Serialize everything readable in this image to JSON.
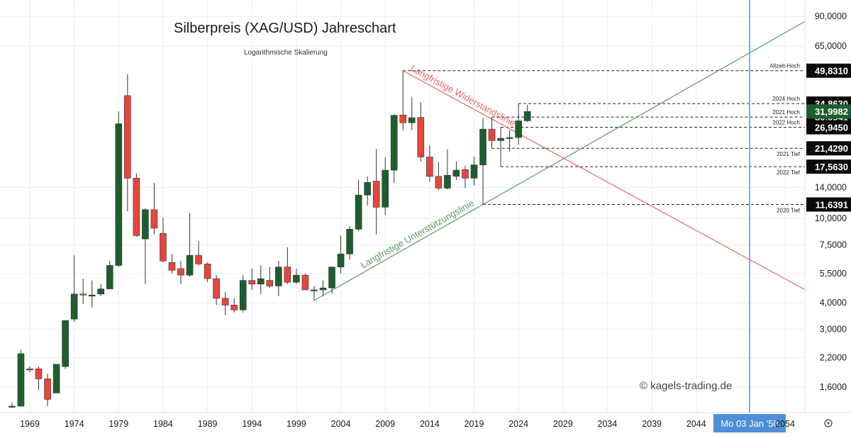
{
  "chart_data": {
    "type": "candlestick",
    "title": "Silberpreis (XAG/USD) Jahreschart",
    "subtitle": "Logarithmische Skalierung",
    "watermark": "© kagels-trading.de",
    "scale": "log",
    "grid": true,
    "x_ticks": [
      "1969",
      "1974",
      "1979",
      "1984",
      "1989",
      "1994",
      "1999",
      "2004",
      "2009",
      "2014",
      "2019",
      "2024",
      "2029",
      "2034",
      "2039",
      "2044",
      "2054"
    ],
    "y_ticks": [
      "90,0000",
      "65,0000",
      "14,0000",
      "10,0000",
      "7,5000",
      "5,5000",
      "4,0000",
      "3,0000",
      "2,2000",
      "1,6000"
    ],
    "crosshair_label": "Mo 03 Jan '50",
    "colors": {
      "up": "#1e5e2e",
      "down": "#e8453c",
      "support": "#5a9a5e",
      "resistance": "#e06a6a",
      "crosshair": "#4aa3e8",
      "label_bg": "#0b0b0b",
      "label_bg_current": "#1e5e2e"
    },
    "candles": [
      {
        "year": 1967,
        "open": 1.3,
        "high": 1.35,
        "low": 1.28,
        "close": 1.3
      },
      {
        "year": 1968,
        "open": 1.3,
        "high": 2.4,
        "low": 1.3,
        "close": 2.3
      },
      {
        "year": 1969,
        "open": 1.95,
        "high": 2.0,
        "low": 1.88,
        "close": 1.93
      },
      {
        "year": 1970,
        "open": 1.95,
        "high": 2.0,
        "low": 1.55,
        "close": 1.75
      },
      {
        "year": 1971,
        "open": 1.75,
        "high": 1.85,
        "low": 1.3,
        "close": 1.4
      },
      {
        "year": 1972,
        "open": 1.5,
        "high": 2.05,
        "low": 1.5,
        "close": 2.05
      },
      {
        "year": 1973,
        "open": 2.0,
        "high": 3.3,
        "low": 1.95,
        "close": 3.3
      },
      {
        "year": 1974,
        "open": 3.35,
        "high": 6.7,
        "low": 3.25,
        "close": 4.4
      },
      {
        "year": 1975,
        "open": 4.4,
        "high": 5.2,
        "low": 3.95,
        "close": 4.35
      },
      {
        "year": 1976,
        "open": 4.3,
        "high": 5.1,
        "low": 3.8,
        "close": 4.35
      },
      {
        "year": 1977,
        "open": 4.4,
        "high": 4.9,
        "low": 4.3,
        "close": 4.65
      },
      {
        "year": 1978,
        "open": 4.65,
        "high": 6.3,
        "low": 4.7,
        "close": 6.0
      },
      {
        "year": 1979,
        "open": 6.0,
        "high": 32.0,
        "low": 5.9,
        "close": 28.0
      },
      {
        "year": 1980,
        "open": 38.0,
        "high": 48.0,
        "low": 10.8,
        "close": 15.5
      },
      {
        "year": 1981,
        "open": 15.5,
        "high": 16.3,
        "low": 8.2,
        "close": 8.3
      },
      {
        "year": 1982,
        "open": 8.0,
        "high": 11.2,
        "low": 4.9,
        "close": 11.0
      },
      {
        "year": 1983,
        "open": 11.0,
        "high": 14.7,
        "low": 8.4,
        "close": 9.0
      },
      {
        "year": 1984,
        "open": 8.5,
        "high": 10.1,
        "low": 6.2,
        "close": 6.3
      },
      {
        "year": 1985,
        "open": 6.2,
        "high": 6.8,
        "low": 5.5,
        "close": 5.7
      },
      {
        "year": 1986,
        "open": 5.8,
        "high": 6.3,
        "low": 4.9,
        "close": 5.4
      },
      {
        "year": 1987,
        "open": 5.4,
        "high": 10.6,
        "low": 5.3,
        "close": 6.7
      },
      {
        "year": 1988,
        "open": 6.7,
        "high": 7.8,
        "low": 6.0,
        "close": 6.1
      },
      {
        "year": 1989,
        "open": 6.1,
        "high": 6.2,
        "low": 5.0,
        "close": 5.2
      },
      {
        "year": 1990,
        "open": 5.2,
        "high": 5.4,
        "low": 3.9,
        "close": 4.2
      },
      {
        "year": 1991,
        "open": 4.2,
        "high": 4.5,
        "low": 3.5,
        "close": 3.9
      },
      {
        "year": 1992,
        "open": 3.9,
        "high": 4.2,
        "low": 3.6,
        "close": 3.7
      },
      {
        "year": 1993,
        "open": 3.7,
        "high": 5.4,
        "low": 3.6,
        "close": 5.1
      },
      {
        "year": 1994,
        "open": 5.1,
        "high": 5.8,
        "low": 4.6,
        "close": 4.9
      },
      {
        "year": 1995,
        "open": 4.9,
        "high": 6.0,
        "low": 4.4,
        "close": 5.2
      },
      {
        "year": 1996,
        "open": 5.1,
        "high": 5.9,
        "low": 4.7,
        "close": 4.8
      },
      {
        "year": 1997,
        "open": 4.8,
        "high": 6.3,
        "low": 4.3,
        "close": 5.9
      },
      {
        "year": 1998,
        "open": 5.9,
        "high": 7.3,
        "low": 4.9,
        "close": 5.0
      },
      {
        "year": 1999,
        "open": 5.0,
        "high": 5.8,
        "low": 4.9,
        "close": 5.4
      },
      {
        "year": 2000,
        "open": 5.4,
        "high": 5.5,
        "low": 4.6,
        "close": 4.6
      },
      {
        "year": 2001,
        "open": 4.6,
        "high": 4.8,
        "low": 4.1,
        "close": 4.6
      },
      {
        "year": 2002,
        "open": 4.6,
        "high": 5.1,
        "low": 4.3,
        "close": 4.7
      },
      {
        "year": 2003,
        "open": 4.7,
        "high": 5.9,
        "low": 4.4,
        "close": 5.9
      },
      {
        "year": 2004,
        "open": 5.9,
        "high": 8.3,
        "low": 5.5,
        "close": 6.8
      },
      {
        "year": 2005,
        "open": 6.8,
        "high": 9.2,
        "low": 6.4,
        "close": 8.9
      },
      {
        "year": 2006,
        "open": 8.9,
        "high": 15.2,
        "low": 8.7,
        "close": 12.9
      },
      {
        "year": 2007,
        "open": 12.9,
        "high": 15.8,
        "low": 11.5,
        "close": 14.8
      },
      {
        "year": 2008,
        "open": 15.0,
        "high": 21.3,
        "low": 8.4,
        "close": 11.3
      },
      {
        "year": 2009,
        "open": 11.3,
        "high": 19.4,
        "low": 10.4,
        "close": 16.9
      },
      {
        "year": 2010,
        "open": 16.9,
        "high": 31.0,
        "low": 14.7,
        "close": 30.7
      },
      {
        "year": 2011,
        "open": 30.8,
        "high": 49.83,
        "low": 26.1,
        "close": 28.3
      },
      {
        "year": 2012,
        "open": 28.3,
        "high": 37.5,
        "low": 26.1,
        "close": 29.9
      },
      {
        "year": 2013,
        "open": 30.0,
        "high": 35.4,
        "low": 18.6,
        "close": 19.5
      },
      {
        "year": 2014,
        "open": 19.5,
        "high": 22.2,
        "low": 14.9,
        "close": 15.8
      },
      {
        "year": 2015,
        "open": 15.8,
        "high": 18.5,
        "low": 13.6,
        "close": 13.9
      },
      {
        "year": 2016,
        "open": 13.9,
        "high": 21.2,
        "low": 13.7,
        "close": 16.0
      },
      {
        "year": 2017,
        "open": 15.8,
        "high": 18.6,
        "low": 15.2,
        "close": 16.9
      },
      {
        "year": 2018,
        "open": 17.0,
        "high": 17.7,
        "low": 13.9,
        "close": 15.5
      },
      {
        "year": 2019,
        "open": 15.5,
        "high": 19.6,
        "low": 14.3,
        "close": 17.9
      },
      {
        "year": 2020,
        "open": 17.9,
        "high": 29.8,
        "low": 11.64,
        "close": 26.4
      },
      {
        "year": 2021,
        "open": 26.4,
        "high": 30.09,
        "low": 21.43,
        "close": 23.3
      },
      {
        "year": 2022,
        "open": 23.3,
        "high": 26.94,
        "low": 17.56,
        "close": 23.9
      },
      {
        "year": 2023,
        "open": 23.9,
        "high": 26.1,
        "low": 20.7,
        "close": 24.1
      },
      {
        "year": 2024,
        "open": 24.1,
        "high": 34.86,
        "low": 22.3,
        "close": 28.9
      },
      {
        "year": 2025,
        "open": 28.9,
        "high": 34.4,
        "low": 28.6,
        "close": 32.0
      }
    ],
    "support_line": {
      "label": "Langfristige Unterstützungslinie",
      "from": {
        "year": 2001,
        "price": 4.1
      },
      "to": {
        "year": 2020,
        "price": 11.64
      }
    },
    "resistance_line": {
      "label": "Langfristige Widerstandslinie",
      "from": {
        "year": 2011,
        "price": 49.83
      },
      "to": {
        "year": 2023,
        "price": 26.5
      }
    },
    "crosshair_year": 2050,
    "levels": [
      {
        "price": 49.831,
        "label": "Allzeit-Hoch",
        "price_label": "49,8310",
        "from_year": 2011
      },
      {
        "price": 34.863,
        "label": "2024 Hoch",
        "price_label": "34,8630",
        "from_year": 2024
      },
      {
        "price": 30.0941,
        "label": "2021 Hoch",
        "price_label": "30,0941",
        "from_year": 2021
      },
      {
        "price": 26.945,
        "label": "2022 Hoch",
        "price_label": "26,9450",
        "from_year": 2022
      },
      {
        "price": 21.429,
        "label": "2021 Tief",
        "price_label": "21,4290",
        "from_year": 2021
      },
      {
        "price": 17.563,
        "label": "2022 Tief",
        "price_label": "17,5630",
        "from_year": 2022
      },
      {
        "price": 11.6391,
        "label": "2020 Tief",
        "price_label": "11,6391",
        "from_year": 2020
      }
    ],
    "current_price": {
      "price": 31.9982,
      "label": "31,9982"
    }
  }
}
